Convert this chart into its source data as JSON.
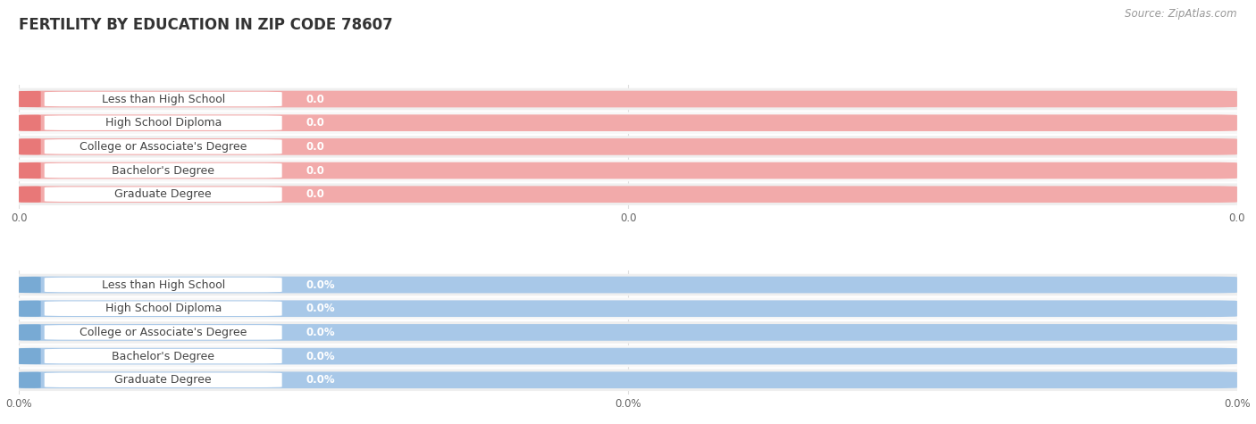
{
  "title": "FERTILITY BY EDUCATION IN ZIP CODE 78607",
  "source": "Source: ZipAtlas.com",
  "categories": [
    "Less than High School",
    "High School Diploma",
    "College or Associate's Degree",
    "Bachelor's Degree",
    "Graduate Degree"
  ],
  "top_values": [
    0.0,
    0.0,
    0.0,
    0.0,
    0.0
  ],
  "bottom_values": [
    0.0,
    0.0,
    0.0,
    0.0,
    0.0
  ],
  "top_bar_fill": "#F2AAAA",
  "top_bar_accent": "#E87878",
  "bottom_bar_fill": "#A8C8E8",
  "bottom_bar_accent": "#78AAD4",
  "bg_color": "#FFFFFF",
  "row_bg": "#EFEFEF",
  "grid_color": "#DDDDDD",
  "top_tick_label": "0.0",
  "bottom_tick_label": "0.0%",
  "title_fontsize": 12,
  "label_fontsize": 9,
  "value_fontsize": 8.5,
  "tick_fontsize": 8.5,
  "source_fontsize": 8.5,
  "title_color": "#333333",
  "label_color": "#444444",
  "source_color": "#999999"
}
